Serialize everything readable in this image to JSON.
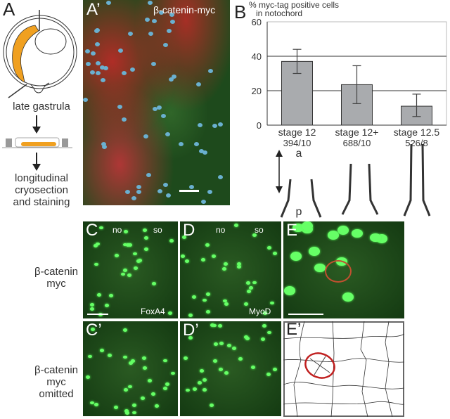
{
  "panels": {
    "A": {
      "label": "A",
      "caption_top": "late gastrula",
      "caption_bottom": [
        "longitudinal",
        "cryosection",
        "and staining"
      ],
      "embryo_color": "#f0a020"
    },
    "A_prime": {
      "label": "A’",
      "title": "β-catenin-myc"
    },
    "B": {
      "label": "B",
      "axis_labels": {
        "a": "a",
        "p": "p"
      }
    },
    "C": {
      "label": "C",
      "tl": "no",
      "tr": "so",
      "marker": "FoxA4"
    },
    "D": {
      "label": "D",
      "tl": "no",
      "tr": "so",
      "marker": "MyoD"
    },
    "E": {
      "label": "E"
    },
    "C_prime": {
      "label": "C’"
    },
    "D_prime": {
      "label": "D’"
    },
    "E_prime": {
      "label": "E’",
      "outline_color": "#c02020"
    },
    "row_labels": {
      "row1": [
        "β-catenin",
        "myc"
      ],
      "row2": [
        "β-catenin",
        "myc",
        "omitted"
      ]
    }
  },
  "chart_data": {
    "type": "bar",
    "ylabel": [
      "% myc-tag positive cells",
      "in notochord"
    ],
    "categories": [
      "stage 12",
      "stage 12+",
      "stage 12.5"
    ],
    "sublabels": [
      "394/10",
      "688/10",
      "526/8"
    ],
    "values": [
      37,
      23.5,
      11
    ],
    "error_low": [
      30,
      12.5,
      5
    ],
    "error_high": [
      44,
      34.5,
      18
    ],
    "ylim": [
      0,
      60
    ],
    "yticks": [
      0,
      20,
      40,
      60
    ],
    "grid": [
      20,
      40
    ],
    "bar_color": "#a9abae"
  }
}
